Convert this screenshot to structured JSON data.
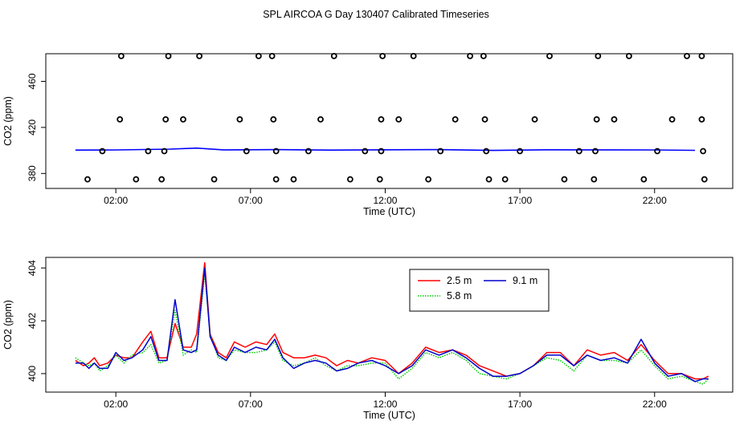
{
  "title": "SPL AIRCOA G  Day 130407  Calibrated Timeseries",
  "chart_data": [
    {
      "type": "scatter",
      "xlabel": "Time (UTC)",
      "ylabel": "CO2 (ppm)",
      "xlim": [
        -0.6,
        24.9
      ],
      "ylim": [
        367,
        484
      ],
      "x_ticks": [
        2,
        7,
        12,
        17,
        22
      ],
      "x_tick_labels": [
        "02:00",
        "07:00",
        "12:00",
        "17:00",
        "22:00"
      ],
      "y_ticks": [
        380,
        420,
        460
      ],
      "y_tick_labels": [
        "380",
        "420",
        "460"
      ],
      "grid": false,
      "line_points": [
        [
          0.5,
          400.3
        ],
        [
          2,
          400.4
        ],
        [
          4,
          401.1
        ],
        [
          5,
          402.0
        ],
        [
          6,
          400.5
        ],
        [
          8,
          400.7
        ],
        [
          10,
          400.3
        ],
        [
          12,
          400.6
        ],
        [
          14,
          400.7
        ],
        [
          16,
          400.0
        ],
        [
          18,
          400.6
        ],
        [
          20,
          400.5
        ],
        [
          22,
          400.4
        ],
        [
          23.5,
          400.1
        ]
      ],
      "points": [
        [
          0.95,
          374.9
        ],
        [
          1.5,
          399.4
        ],
        [
          2.15,
          427.0
        ],
        [
          2.2,
          482.0
        ],
        [
          2.75,
          374.9
        ],
        [
          3.2,
          399.4
        ],
        [
          3.7,
          374.9
        ],
        [
          3.8,
          399.4
        ],
        [
          3.85,
          427.0
        ],
        [
          3.95,
          482.0
        ],
        [
          4.5,
          427.0
        ],
        [
          5.1,
          482.0
        ],
        [
          5.65,
          374.9
        ],
        [
          6.6,
          427.0
        ],
        [
          6.85,
          399.4
        ],
        [
          7.3,
          482.0
        ],
        [
          7.8,
          482.0
        ],
        [
          7.85,
          427.0
        ],
        [
          7.95,
          399.4
        ],
        [
          7.95,
          374.9
        ],
        [
          8.6,
          374.9
        ],
        [
          9.15,
          399.4
        ],
        [
          9.6,
          427.0
        ],
        [
          10.1,
          482.0
        ],
        [
          10.7,
          374.9
        ],
        [
          11.25,
          399.4
        ],
        [
          11.8,
          374.9
        ],
        [
          11.85,
          399.4
        ],
        [
          11.85,
          427.0
        ],
        [
          11.9,
          482.0
        ],
        [
          12.5,
          427.0
        ],
        [
          13.05,
          482.0
        ],
        [
          13.6,
          374.9
        ],
        [
          14.05,
          399.4
        ],
        [
          14.6,
          427.0
        ],
        [
          15.15,
          482.0
        ],
        [
          15.65,
          482.0
        ],
        [
          15.7,
          427.0
        ],
        [
          15.75,
          399.4
        ],
        [
          15.85,
          374.9
        ],
        [
          16.45,
          374.9
        ],
        [
          17.0,
          399.4
        ],
        [
          17.55,
          427.0
        ],
        [
          18.1,
          482.0
        ],
        [
          18.65,
          374.9
        ],
        [
          19.2,
          399.4
        ],
        [
          19.75,
          374.9
        ],
        [
          19.8,
          399.4
        ],
        [
          19.85,
          427.0
        ],
        [
          19.9,
          482.0
        ],
        [
          20.5,
          427.0
        ],
        [
          21.05,
          482.0
        ],
        [
          21.6,
          374.9
        ],
        [
          22.1,
          399.4
        ],
        [
          22.65,
          427.0
        ],
        [
          23.2,
          482.0
        ],
        [
          23.75,
          482.0
        ],
        [
          23.75,
          427.0
        ],
        [
          23.8,
          399.4
        ],
        [
          23.85,
          374.9
        ]
      ],
      "colors": {
        "line": "#0000ff",
        "points": "#000000"
      }
    },
    {
      "type": "line",
      "xlabel": "Time (UTC)",
      "ylabel": "CO2 (ppm)",
      "xlim": [
        -0.6,
        24.9
      ],
      "ylim": [
        399.3,
        404.4
      ],
      "x_ticks": [
        2,
        7,
        12,
        17,
        22
      ],
      "x_tick_labels": [
        "02:00",
        "07:00",
        "12:00",
        "17:00",
        "22:00"
      ],
      "y_ticks": [
        400,
        402,
        404
      ],
      "y_tick_labels": [
        "400",
        "402",
        "404"
      ],
      "grid": false,
      "legend_position": "top-right",
      "series": [
        {
          "name": "2.5 m",
          "color": "#ff0000",
          "dash": "solid",
          "points": [
            [
              0.5,
              400.5
            ],
            [
              0.8,
              400.3
            ],
            [
              1.0,
              400.4
            ],
            [
              1.2,
              400.6
            ],
            [
              1.4,
              400.3
            ],
            [
              1.7,
              400.4
            ],
            [
              2.0,
              400.7
            ],
            [
              2.3,
              400.6
            ],
            [
              2.6,
              400.6
            ],
            [
              3.0,
              401.2
            ],
            [
              3.3,
              401.6
            ],
            [
              3.6,
              400.6
            ],
            [
              3.9,
              400.6
            ],
            [
              4.2,
              401.9
            ],
            [
              4.5,
              401.0
            ],
            [
              4.8,
              401.0
            ],
            [
              5.0,
              401.5
            ],
            [
              5.3,
              404.2
            ],
            [
              5.5,
              401.5
            ],
            [
              5.8,
              400.8
            ],
            [
              6.1,
              400.6
            ],
            [
              6.4,
              401.2
            ],
            [
              6.8,
              401.0
            ],
            [
              7.2,
              401.2
            ],
            [
              7.6,
              401.1
            ],
            [
              7.9,
              401.5
            ],
            [
              8.2,
              400.8
            ],
            [
              8.6,
              400.6
            ],
            [
              9.0,
              400.6
            ],
            [
              9.4,
              400.7
            ],
            [
              9.8,
              400.6
            ],
            [
              10.2,
              400.3
            ],
            [
              10.6,
              400.5
            ],
            [
              11.0,
              400.4
            ],
            [
              11.5,
              400.6
            ],
            [
              12.0,
              400.5
            ],
            [
              12.5,
              400.0
            ],
            [
              13.0,
              400.4
            ],
            [
              13.5,
              401.0
            ],
            [
              14.0,
              400.8
            ],
            [
              14.5,
              400.9
            ],
            [
              15.0,
              400.7
            ],
            [
              15.5,
              400.3
            ],
            [
              16.0,
              400.1
            ],
            [
              16.5,
              399.9
            ],
            [
              17.0,
              400.0
            ],
            [
              17.5,
              400.3
            ],
            [
              18.0,
              400.8
            ],
            [
              18.5,
              400.8
            ],
            [
              19.0,
              400.3
            ],
            [
              19.5,
              400.9
            ],
            [
              20.0,
              400.7
            ],
            [
              20.5,
              400.8
            ],
            [
              21.0,
              400.5
            ],
            [
              21.5,
              401.1
            ],
            [
              22.0,
              400.5
            ],
            [
              22.5,
              400.0
            ],
            [
              23.0,
              400.0
            ],
            [
              23.5,
              399.8
            ],
            [
              23.8,
              399.8
            ],
            [
              24.0,
              399.9
            ]
          ]
        },
        {
          "name": "5.8 m",
          "color": "#00cc00",
          "dash": "dotted",
          "points": [
            [
              0.5,
              400.6
            ],
            [
              0.8,
              400.4
            ],
            [
              1.0,
              400.3
            ],
            [
              1.2,
              400.4
            ],
            [
              1.4,
              400.1
            ],
            [
              1.7,
              400.3
            ],
            [
              2.0,
              400.7
            ],
            [
              2.3,
              400.4
            ],
            [
              2.6,
              400.7
            ],
            [
              3.0,
              400.8
            ],
            [
              3.3,
              401.1
            ],
            [
              3.6,
              400.4
            ],
            [
              3.9,
              400.5
            ],
            [
              4.2,
              402.4
            ],
            [
              4.5,
              400.7
            ],
            [
              4.8,
              400.9
            ],
            [
              5.0,
              400.8
            ],
            [
              5.3,
              403.8
            ],
            [
              5.5,
              401.5
            ],
            [
              5.8,
              400.6
            ],
            [
              6.1,
              400.5
            ],
            [
              6.4,
              400.9
            ],
            [
              6.8,
              400.8
            ],
            [
              7.2,
              400.8
            ],
            [
              7.6,
              400.9
            ],
            [
              7.9,
              401.2
            ],
            [
              8.2,
              400.5
            ],
            [
              8.6,
              400.3
            ],
            [
              9.0,
              400.4
            ],
            [
              9.4,
              400.6
            ],
            [
              9.8,
              400.3
            ],
            [
              10.2,
              400.1
            ],
            [
              10.6,
              400.3
            ],
            [
              11.0,
              400.3
            ],
            [
              11.5,
              400.4
            ],
            [
              12.0,
              400.4
            ],
            [
              12.5,
              399.8
            ],
            [
              13.0,
              400.2
            ],
            [
              13.5,
              400.8
            ],
            [
              14.0,
              400.6
            ],
            [
              14.5,
              400.8
            ],
            [
              15.0,
              400.5
            ],
            [
              15.5,
              400.0
            ],
            [
              16.0,
              399.9
            ],
            [
              16.5,
              399.8
            ],
            [
              17.0,
              400.0
            ],
            [
              17.5,
              400.3
            ],
            [
              18.0,
              400.6
            ],
            [
              18.5,
              400.5
            ],
            [
              19.0,
              400.1
            ],
            [
              19.5,
              400.7
            ],
            [
              20.0,
              400.5
            ],
            [
              20.5,
              400.5
            ],
            [
              21.0,
              400.4
            ],
            [
              21.5,
              400.9
            ],
            [
              22.0,
              400.3
            ],
            [
              22.5,
              399.8
            ],
            [
              23.0,
              399.9
            ],
            [
              23.5,
              399.7
            ],
            [
              23.8,
              399.6
            ],
            [
              24.0,
              399.8
            ]
          ]
        },
        {
          "name": "9.1 m",
          "color": "#0000cc",
          "dash": "solid",
          "points": [
            [
              0.5,
              400.4
            ],
            [
              0.8,
              400.4
            ],
            [
              1.0,
              400.2
            ],
            [
              1.2,
              400.4
            ],
            [
              1.4,
              400.2
            ],
            [
              1.7,
              400.2
            ],
            [
              2.0,
              400.8
            ],
            [
              2.3,
              400.5
            ],
            [
              2.6,
              400.6
            ],
            [
              3.0,
              400.9
            ],
            [
              3.3,
              401.4
            ],
            [
              3.6,
              400.5
            ],
            [
              3.9,
              400.5
            ],
            [
              4.2,
              402.8
            ],
            [
              4.5,
              400.9
            ],
            [
              4.8,
              400.8
            ],
            [
              5.0,
              400.9
            ],
            [
              5.3,
              404.0
            ],
            [
              5.5,
              401.4
            ],
            [
              5.8,
              400.7
            ],
            [
              6.1,
              400.5
            ],
            [
              6.4,
              401.0
            ],
            [
              6.8,
              400.8
            ],
            [
              7.2,
              401.0
            ],
            [
              7.6,
              400.9
            ],
            [
              7.9,
              401.3
            ],
            [
              8.2,
              400.6
            ],
            [
              8.6,
              400.2
            ],
            [
              9.0,
              400.4
            ],
            [
              9.4,
              400.5
            ],
            [
              9.8,
              400.4
            ],
            [
              10.2,
              400.1
            ],
            [
              10.6,
              400.2
            ],
            [
              11.0,
              400.4
            ],
            [
              11.5,
              400.5
            ],
            [
              12.0,
              400.3
            ],
            [
              12.5,
              400.0
            ],
            [
              13.0,
              400.3
            ],
            [
              13.5,
              400.9
            ],
            [
              14.0,
              400.7
            ],
            [
              14.5,
              400.9
            ],
            [
              15.0,
              400.6
            ],
            [
              15.5,
              400.2
            ],
            [
              16.0,
              399.9
            ],
            [
              16.5,
              399.9
            ],
            [
              17.0,
              400.0
            ],
            [
              17.5,
              400.3
            ],
            [
              18.0,
              400.7
            ],
            [
              18.5,
              400.7
            ],
            [
              19.0,
              400.3
            ],
            [
              19.5,
              400.7
            ],
            [
              20.0,
              400.5
            ],
            [
              20.5,
              400.6
            ],
            [
              21.0,
              400.4
            ],
            [
              21.5,
              401.3
            ],
            [
              22.0,
              400.4
            ],
            [
              22.5,
              399.9
            ],
            [
              23.0,
              400.0
            ],
            [
              23.5,
              399.7
            ],
            [
              23.8,
              399.8
            ],
            [
              24.0,
              399.8
            ]
          ]
        }
      ]
    }
  ]
}
